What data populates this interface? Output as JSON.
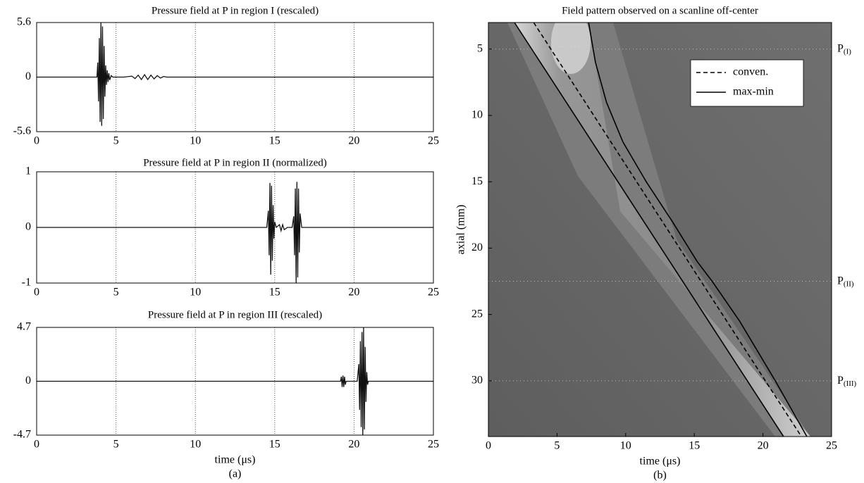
{
  "chart_data": [
    {
      "type": "line",
      "title": "Pressure field at P in region I (rescaled)",
      "color": "#111111",
      "xlim": [
        0,
        25
      ],
      "xticks": [
        0,
        5,
        10,
        15,
        20,
        25
      ],
      "ylim": [
        -5.6,
        5.6
      ],
      "yticks": [
        -5.6,
        0,
        5.6
      ],
      "grid": true,
      "x": [
        0,
        3.8,
        3.85,
        3.9,
        3.95,
        4.0,
        4.05,
        4.1,
        4.15,
        4.2,
        4.25,
        4.3,
        4.35,
        4.4,
        4.45,
        4.5,
        4.55,
        4.6,
        4.7,
        4.8,
        5.5,
        6.0,
        6.2,
        6.4,
        6.6,
        6.8,
        7.0,
        7.2,
        7.4,
        7.6,
        7.8,
        8.0,
        8.2,
        25
      ],
      "values": [
        0,
        0,
        1.5,
        -2.5,
        4.0,
        -4.6,
        5.6,
        -5.0,
        5.2,
        -4.3,
        3.2,
        -2.0,
        1.2,
        -0.8,
        0.7,
        -0.5,
        0.4,
        -0.3,
        0.15,
        0,
        0,
        0.1,
        -0.15,
        0.2,
        -0.25,
        0.25,
        -0.25,
        0.2,
        -0.18,
        0.15,
        -0.1,
        0.06,
        0,
        0
      ]
    },
    {
      "type": "line",
      "title": "Pressure field at P in region II  (normalized)",
      "color": "#111111",
      "xlim": [
        0,
        25
      ],
      "xticks": [
        0,
        5,
        10,
        15,
        20,
        25
      ],
      "ylim": [
        -1,
        1
      ],
      "yticks": [
        -1,
        0,
        1
      ],
      "grid": true,
      "x": [
        0,
        14.5,
        14.6,
        14.65,
        14.7,
        14.75,
        14.8,
        14.85,
        14.9,
        14.95,
        15.0,
        15.1,
        15.3,
        15.4,
        15.5,
        15.6,
        15.8,
        16.1,
        16.2,
        16.25,
        16.3,
        16.35,
        16.4,
        16.45,
        16.5,
        16.55,
        16.6,
        16.7,
        25
      ],
      "values": [
        0,
        0,
        0.3,
        -0.5,
        0.8,
        -0.85,
        0.75,
        -0.6,
        0.4,
        -0.2,
        0.1,
        0,
        0.05,
        -0.06,
        0.05,
        -0.04,
        0,
        0,
        0.2,
        -0.5,
        0.7,
        -1.0,
        0.82,
        -0.9,
        0.7,
        -0.45,
        0.25,
        0,
        0
      ]
    },
    {
      "type": "line",
      "title": "Pressure field at P in region III  (rescaled)",
      "color": "#111111",
      "x_label": "time (μs)",
      "panel_label": "(a)",
      "xlim": [
        0,
        25
      ],
      "xticks": [
        0,
        5,
        10,
        15,
        20,
        25
      ],
      "ylim": [
        -4.7,
        4.7
      ],
      "yticks": [
        -4.7,
        0,
        4.7
      ],
      "grid": true,
      "x": [
        0,
        19.15,
        19.2,
        19.25,
        19.3,
        19.35,
        19.4,
        19.45,
        19.5,
        20.2,
        20.3,
        20.35,
        20.4,
        20.45,
        20.5,
        20.55,
        20.6,
        20.65,
        20.7,
        20.75,
        20.8,
        20.85,
        20.9,
        25
      ],
      "values": [
        0,
        0,
        0.4,
        -0.5,
        0.5,
        -0.5,
        0.4,
        -0.3,
        0,
        0,
        1.5,
        -2.5,
        3.5,
        -4.0,
        4.3,
        -4.7,
        4.7,
        -4.2,
        3.0,
        -1.8,
        0.8,
        -0.3,
        0,
        0
      ]
    },
    {
      "type": "field",
      "title": "Field pattern observed on a scanline off-center",
      "x_label": "time (μs)",
      "y_label": "axial (mm)",
      "panel_label": "(b)",
      "xlim": [
        0,
        25
      ],
      "xticks": [
        0,
        5,
        10,
        15,
        20,
        25
      ],
      "ylim": [
        3,
        34.2
      ],
      "yticks": [
        5,
        10,
        15,
        20,
        25,
        30
      ],
      "y_inverted": true,
      "legend": "upper right",
      "series": [
        {
          "name": "conven.",
          "color": "#000000",
          "linestyle": "dashed",
          "x": [
            3.3,
            22.8
          ],
          "values": [
            3,
            34.2
          ]
        },
        {
          "name": "max-min",
          "color": "#000000",
          "linestyle": "solid",
          "x": [
            1.9,
            21.5,
            null,
            7.3,
            7.8,
            8.6,
            9.8,
            11.5,
            13.4,
            15.2,
            16.3,
            18.3,
            20.9,
            23.2
          ],
          "values": [
            3,
            34.2,
            null,
            3,
            6,
            9,
            12,
            15,
            18,
            21,
            22.5,
            25.5,
            30,
            34.2
          ]
        }
      ],
      "markers": [
        {
          "text": "P",
          "sub": "(I)",
          "y": 5
        },
        {
          "text": "P",
          "sub": "(II)",
          "y": 22.5
        },
        {
          "text": "P",
          "sub": "(III)",
          "y": 30
        }
      ]
    }
  ]
}
